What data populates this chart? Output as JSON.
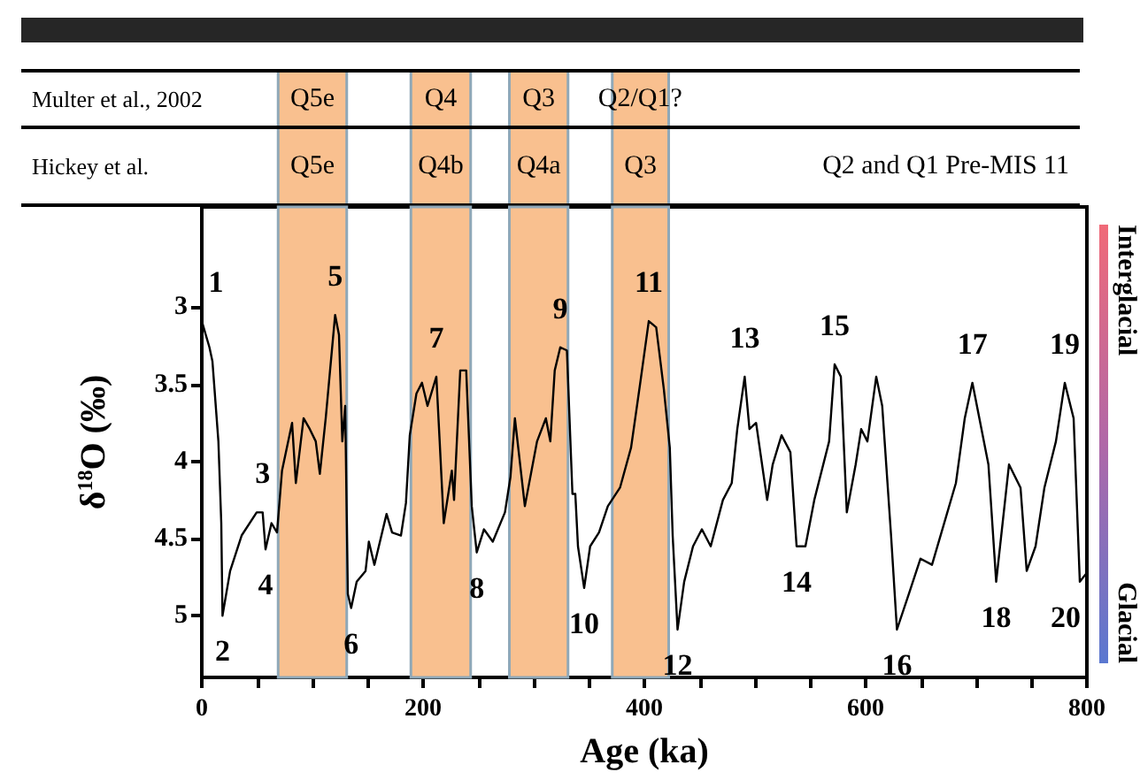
{
  "chart_data": {
    "type": "line",
    "xlabel": "Age (ka)",
    "ylabel": "δ$^{18}$O (‰)",
    "x": [
      0,
      6.9,
      9.6,
      15,
      17.6,
      18.7,
      25.6,
      36,
      49.6,
      55,
      57.6,
      63,
      68,
      72.5,
      81.6,
      85,
      92,
      97.6,
      103,
      106.7,
      112,
      120.5,
      124,
      127,
      129.6,
      132,
      135,
      140,
      148,
      151,
      156,
      167,
      172,
      180,
      184.5,
      188,
      194,
      199,
      204,
      212,
      215,
      218.7,
      226,
      228,
      233.6,
      239,
      244,
      248.5,
      255,
      263,
      274,
      279,
      283,
      292,
      303,
      311,
      315,
      319,
      324,
      330,
      335,
      337.6,
      340,
      345.6,
      351,
      359,
      367,
      378,
      388,
      396.3,
      404,
      410.7,
      417.6,
      423,
      425.6,
      430,
      436,
      444,
      452,
      460,
      471,
      479,
      484,
      490.7,
      495,
      501,
      511,
      516,
      524,
      532,
      537.6,
      545.6,
      553.6,
      567,
      572,
      577.6,
      583,
      591,
      596,
      601.6,
      609.6,
      615,
      623,
      628.3,
      639,
      649.6,
      660,
      671,
      681.6,
      689.6,
      696.5,
      711,
      718,
      729.6,
      740,
      745.6,
      753.6,
      761.6,
      772,
      780,
      788,
      793.6,
      799
    ],
    "series": [
      {
        "color": "#000000",
        "values": [
          3.09,
          3.26,
          3.35,
          3.87,
          4.4,
          5.0,
          4.71,
          4.48,
          4.33,
          4.33,
          4.57,
          4.4,
          4.46,
          4.06,
          3.75,
          4.14,
          3.72,
          3.79,
          3.87,
          4.08,
          3.72,
          3.05,
          3.18,
          3.87,
          3.64,
          4.86,
          4.95,
          4.78,
          4.71,
          4.52,
          4.67,
          4.34,
          4.46,
          4.48,
          4.27,
          3.83,
          3.56,
          3.49,
          3.64,
          3.45,
          3.87,
          4.4,
          4.06,
          4.25,
          3.41,
          3.41,
          4.29,
          4.59,
          4.44,
          4.52,
          4.33,
          4.1,
          3.72,
          4.29,
          3.87,
          3.72,
          3.87,
          3.41,
          3.26,
          3.28,
          4.21,
          4.21,
          4.55,
          4.82,
          4.55,
          4.46,
          4.29,
          4.17,
          3.91,
          3.49,
          3.09,
          3.13,
          3.53,
          3.91,
          4.48,
          5.09,
          4.78,
          4.55,
          4.44,
          4.55,
          4.25,
          4.14,
          3.79,
          3.45,
          3.79,
          3.75,
          4.25,
          4.02,
          3.83,
          3.94,
          4.55,
          4.55,
          4.25,
          3.87,
          3.37,
          3.45,
          4.33,
          4.02,
          3.79,
          3.87,
          3.45,
          3.64,
          4.48,
          5.09,
          4.86,
          4.63,
          4.67,
          4.4,
          4.14,
          3.72,
          3.49,
          4.02,
          4.78,
          4.02,
          4.17,
          4.71,
          4.55,
          4.17,
          3.87,
          3.49,
          3.72,
          4.78,
          4.73
        ]
      }
    ],
    "xlim": [
      0,
      800
    ],
    "ylim": [
      5.4,
      2.35
    ],
    "xticks": [
      0,
      {
        "value": 50,
        "label": null
      },
      {
        "value": 100,
        "label": null
      },
      {
        "value": 150,
        "label": null
      },
      200,
      {
        "value": 250,
        "label": null
      },
      {
        "value": 300,
        "label": null
      },
      {
        "value": 350,
        "label": null
      },
      400,
      {
        "value": 450,
        "label": null
      },
      {
        "value": 500,
        "label": null
      },
      {
        "value": 550,
        "label": null
      },
      600,
      {
        "value": 650,
        "label": null
      },
      {
        "value": 700,
        "label": null
      },
      {
        "value": 750,
        "label": null
      },
      800
    ],
    "yticks": [
      3,
      3.5,
      4,
      4.5,
      5
    ],
    "bands": [
      {
        "axis": "x",
        "from": 69,
        "to": 131,
        "color": "#f9c08f"
      },
      {
        "axis": "x",
        "from": 189,
        "to": 243,
        "color": "#f9c08f"
      },
      {
        "axis": "x",
        "from": 278,
        "to": 331,
        "color": "#f9c08f"
      },
      {
        "axis": "x",
        "from": 371,
        "to": 422,
        "color": "#f9c08f"
      }
    ],
    "annotations": [
      "Multer et al., 2002",
      "Q5e",
      "Q4",
      "Q3",
      "Q2/Q1?",
      "Hickey et al.",
      "Q5e",
      "Q4b",
      "Q4a",
      "Q3",
      "Q2 and Q1 Pre-MIS 11",
      {
        "text": "1",
        "x": 0,
        "y": 3.09
      },
      {
        "text": "2",
        "x": 18.7,
        "y": 5.0
      },
      {
        "text": "3",
        "x": 55,
        "y": 4.33
      },
      {
        "text": "4",
        "x": 57.6,
        "y": 4.57
      },
      {
        "text": "5",
        "x": 120.5,
        "y": 3.05
      },
      {
        "text": "6",
        "x": 135,
        "y": 4.95
      },
      {
        "text": "7",
        "x": 212,
        "y": 3.45
      },
      {
        "text": "8",
        "x": 248.5,
        "y": 4.59
      },
      {
        "text": "9",
        "x": 324,
        "y": 3.26
      },
      {
        "text": "10",
        "x": 345.6,
        "y": 4.82
      },
      {
        "text": "11",
        "x": 404,
        "y": 3.09
      },
      {
        "text": "12",
        "x": 430,
        "y": 5.09
      },
      {
        "text": "13",
        "x": 490.7,
        "y": 3.45
      },
      {
        "text": "14",
        "x": 537.6,
        "y": 4.55
      },
      {
        "text": "15",
        "x": 572,
        "y": 3.37
      },
      {
        "text": "16",
        "x": 628.3,
        "y": 5.09
      },
      {
        "text": "17",
        "x": 696.5,
        "y": 3.49
      },
      {
        "text": "18",
        "x": 718,
        "y": 4.78
      },
      {
        "text": "19",
        "x": 780,
        "y": 3.49
      },
      {
        "text": "20",
        "x": 793.6,
        "y": 4.78
      },
      "Interglacial",
      "Glacial"
    ],
    "grid": false,
    "marker": "none",
    "line_style": "solid"
  }
}
